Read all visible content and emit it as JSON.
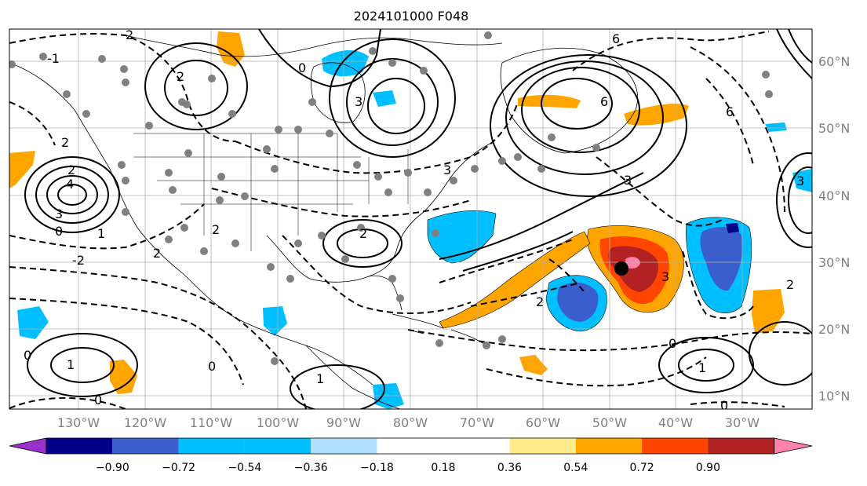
{
  "title": "2024101000 F048",
  "lon_labels": [
    "130°W",
    "120°W",
    "110°W",
    "100°W",
    "90°W",
    "80°W",
    "70°W",
    "60°W",
    "50°W",
    "40°W",
    "30°W"
  ],
  "lat_labels": [
    "60°N",
    "50°N",
    "40°N",
    "30°N",
    "20°N",
    "10°N"
  ],
  "contour_labels": [
    "-2",
    "-1",
    "0",
    "1",
    "2",
    "3",
    "4",
    "6"
  ],
  "colorbar": {
    "tick_labels": [
      "−0.90",
      "−0.72",
      "−0.54",
      "−0.36",
      "−0.18",
      "0.18",
      "0.36",
      "0.54",
      "0.72",
      "0.90"
    ],
    "colors": [
      "#9932cc",
      "#00008b",
      "#3a5fcd",
      "#00bfff",
      "#b0e2ff",
      "#ffffff",
      "#ffec8b",
      "#ffa500",
      "#ff4500",
      "#b22222",
      "#ff82ab"
    ]
  },
  "style": {
    "axis_label_color": "#808080",
    "grid_color": "#b0b0b0",
    "contour_color": "#000000",
    "station_color": "#808080"
  }
}
